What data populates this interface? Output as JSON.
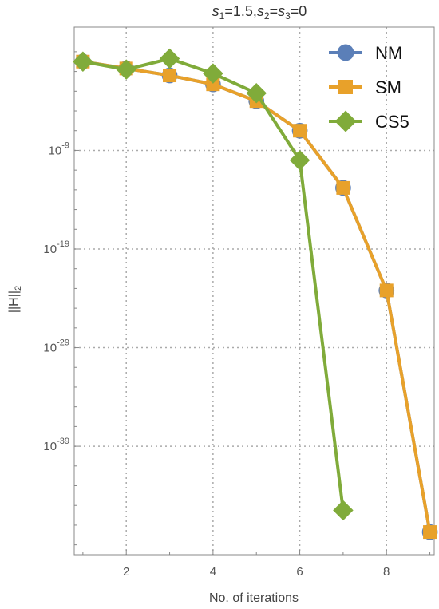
{
  "chart_data": {
    "type": "line",
    "y_scale": "log",
    "title": {
      "s1": "s",
      "s1_sub": "1",
      "s1_val": "=1.5,",
      "s2": "s",
      "s2_sub": "2",
      "eq": "=",
      "s3": "s",
      "s3_sub": "3",
      "s3_val": "=0"
    },
    "xlabel": "No. of iterations",
    "ylabel": {
      "base": "||H||",
      "sub": "2"
    },
    "xlim": [
      0.8,
      9.1
    ],
    "ylim_exp": [
      -50,
      3.5
    ],
    "x_ticks": [
      2,
      4,
      6,
      8
    ],
    "x_tick_labels": [
      "2",
      "4",
      "6",
      "8"
    ],
    "y_ticks_exp": [
      -9,
      -19,
      -29,
      -39
    ],
    "y_tick_labels": [
      {
        "base": "10",
        "exp": "-9"
      },
      {
        "base": "10",
        "exp": "-19"
      },
      {
        "base": "10",
        "exp": "-29"
      },
      {
        "base": "10",
        "exp": "-39"
      }
    ],
    "grid": true,
    "legend_position": "top-right",
    "series": [
      {
        "name": "NM",
        "color": "#5b7fb8",
        "marker": "circle",
        "x": [
          1,
          2,
          3,
          4,
          5,
          6,
          7,
          8,
          9
        ],
        "log10_y": [
          0,
          -0.7,
          -1.4,
          -2.3,
          -4,
          -7,
          -12.8,
          -23.2,
          -47.7
        ]
      },
      {
        "name": "SM",
        "color": "#e8a12a",
        "marker": "square",
        "x": [
          1,
          2,
          3,
          4,
          5,
          6,
          7,
          8,
          9
        ],
        "log10_y": [
          0,
          -0.7,
          -1.4,
          -2.3,
          -4,
          -7,
          -12.8,
          -23.2,
          -47.7
        ]
      },
      {
        "name": "CS5",
        "color": "#80ab3a",
        "marker": "diamond",
        "x": [
          1,
          2,
          3,
          4,
          5,
          6,
          7
        ],
        "log10_y": [
          0,
          -0.8,
          0.3,
          -1.2,
          -3.2,
          -10,
          -45.5
        ]
      }
    ]
  }
}
